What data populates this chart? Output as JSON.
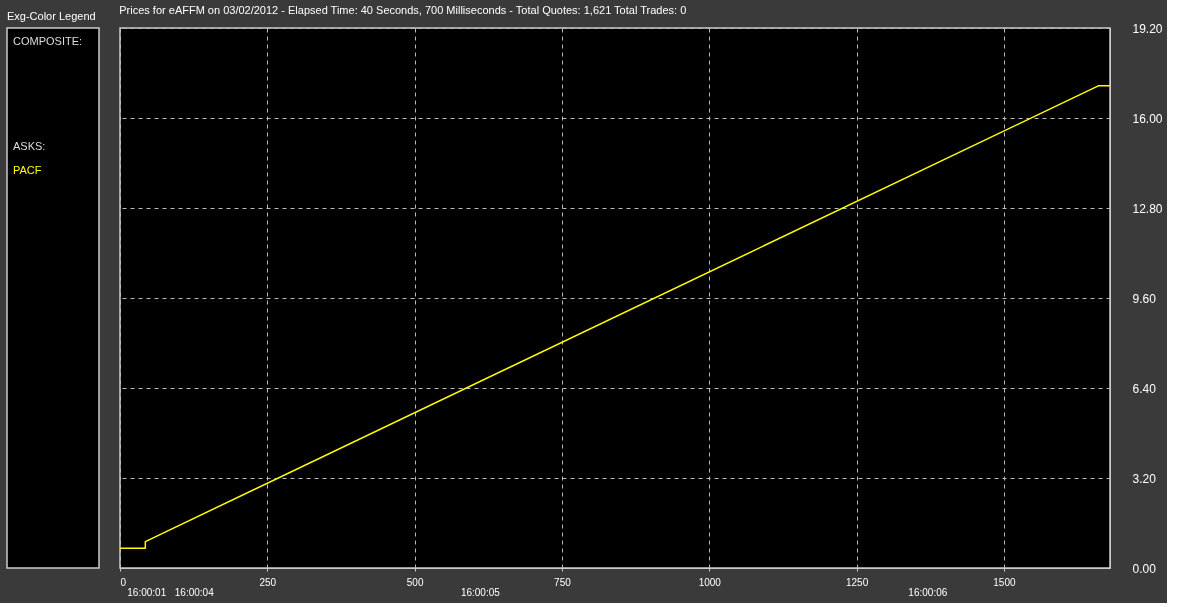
{
  "chart_data": {
    "type": "line",
    "title": "Prices for  eAFFM  on  03/02/2012  -  Elapsed Time: 40 Seconds, 700 Milliseconds  -  Total Quotes: 1,621  Total Trades: 0",
    "legend_title": "Exg-Color Legend",
    "annotations": [
      "COMPOSITE:",
      "ASKS:",
      "16:00:01",
      "16:00:04",
      "16:00:05",
      "16:00:06"
    ],
    "series": [
      {
        "name": "PACF",
        "color": "#ffff00",
        "x": [
          0,
          43,
          43,
          1661,
          1680
        ],
        "values": [
          0.7,
          0.7,
          0.94,
          17.15,
          17.15
        ]
      }
    ],
    "xlim": [
      0,
      1680
    ],
    "xticks": [
      0,
      250,
      500,
      750,
      1000,
      1250,
      1500
    ],
    "ylim": [
      0,
      19.2
    ],
    "yticks": [
      {
        "value": 0,
        "label": "0.00"
      },
      {
        "value": 3.2,
        "label": "3.20"
      },
      {
        "value": 6.4,
        "label": "6.40"
      },
      {
        "value": 9.6,
        "label": "9.60"
      },
      {
        "value": 12.8,
        "label": "12.80"
      },
      {
        "value": 16,
        "label": "16.00"
      },
      {
        "value": 19.2,
        "label": "19.20"
      }
    ],
    "grid": true,
    "legend": "left",
    "marker": "none",
    "line_style": "solid"
  }
}
